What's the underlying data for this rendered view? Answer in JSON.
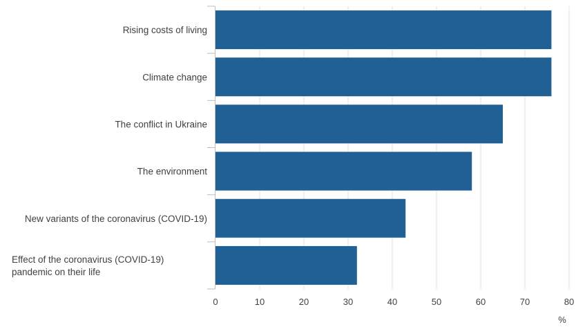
{
  "chart_data": {
    "type": "bar",
    "orientation": "horizontal",
    "categories": [
      [
        "Rising costs of living"
      ],
      [
        "Climate change"
      ],
      [
        "The conflict in Ukraine"
      ],
      [
        "The environment"
      ],
      [
        "New variants of the coronavirus (COVID-19)"
      ],
      [
        "Effect of the coronavirus (COVID-19)",
        "pandemic on their life"
      ]
    ],
    "values": [
      76,
      76,
      65,
      58,
      43,
      32
    ],
    "xlim": [
      0,
      80
    ],
    "xticks": [
      0,
      10,
      20,
      30,
      40,
      50,
      60,
      70,
      80
    ],
    "xlabel": "%",
    "grid": "vertical",
    "bar_color": "#206095",
    "grid_color": "#e2e2e3",
    "axis_color": "#bebebe"
  }
}
